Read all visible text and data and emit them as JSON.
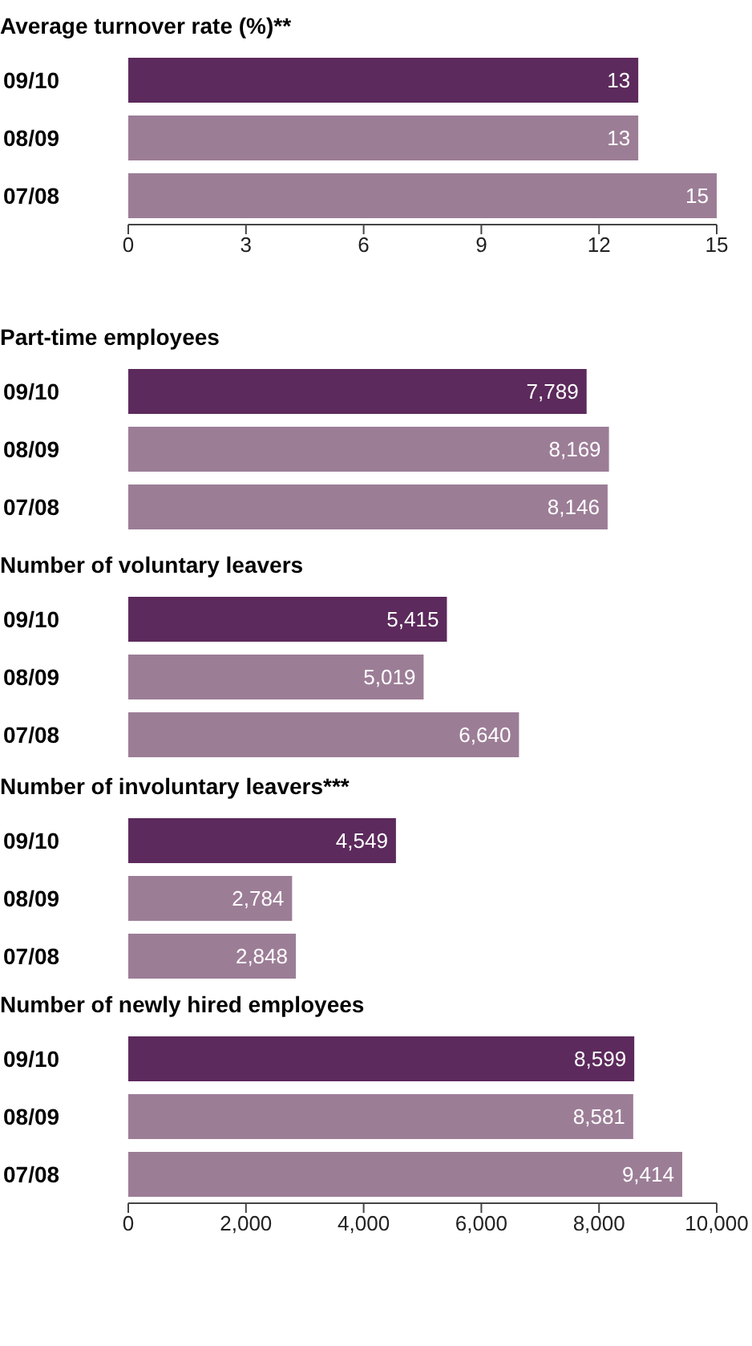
{
  "chart_data": [
    {
      "type": "bar",
      "orientation": "horizontal",
      "title": "Average turnover rate (%)**",
      "categories": [
        "09/10",
        "08/09",
        "07/08"
      ],
      "values": [
        13,
        13,
        15
      ],
      "colors": [
        "#5c2a5c",
        "#9c7d96",
        "#9c7d96"
      ],
      "xlim": [
        0,
        15
      ],
      "xticks": [
        0,
        3,
        6,
        9,
        12,
        15
      ],
      "data_labels": true,
      "grid": false,
      "legend": false
    },
    {
      "type": "bar",
      "orientation": "horizontal",
      "title": "Part-time employees",
      "categories": [
        "09/10",
        "08/09",
        "07/08"
      ],
      "values": [
        7789,
        8169,
        8146
      ],
      "value_labels": [
        "7,789",
        "8,169",
        "8,146"
      ],
      "colors": [
        "#5c2a5c",
        "#9c7d96",
        "#9c7d96"
      ],
      "xlim": [
        0,
        10000
      ],
      "tick_labels": "y",
      "grid": false,
      "legend": false
    },
    {
      "type": "bar",
      "orientation": "horizontal",
      "title": "Number of voluntary leavers",
      "categories": [
        "09/10",
        "08/09",
        "07/08"
      ],
      "values": [
        5415,
        5019,
        6640
      ],
      "value_labels": [
        "5,415",
        "5,019",
        "6,640"
      ],
      "colors": [
        "#5c2a5c",
        "#9c7d96",
        "#9c7d96"
      ],
      "xlim": [
        0,
        10000
      ],
      "tick_labels": "y",
      "grid": false,
      "legend": false
    },
    {
      "type": "bar",
      "orientation": "horizontal",
      "title": "Number of involuntary leavers***",
      "categories": [
        "09/10",
        "08/09",
        "07/08"
      ],
      "values": [
        4549,
        2784,
        2848
      ],
      "value_labels": [
        "4,549",
        "2,784",
        "2,848"
      ],
      "colors": [
        "#5c2a5c",
        "#9c7d96",
        "#9c7d96"
      ],
      "xlim": [
        0,
        10000
      ],
      "tick_labels": "y",
      "grid": false,
      "legend": false
    },
    {
      "type": "bar",
      "orientation": "horizontal",
      "title": "Number of newly hired employees",
      "categories": [
        "09/10",
        "08/09",
        "07/08"
      ],
      "values": [
        8599,
        8581,
        9414
      ],
      "value_labels": [
        "8,599",
        "8,581",
        "9,414"
      ],
      "colors": [
        "#5c2a5c",
        "#9c7d96",
        "#9c7d96"
      ],
      "xlim": [
        0,
        10000
      ],
      "xticks": [
        0,
        {
          "value": 2000,
          "label": "2,000"
        },
        {
          "value": 4000,
          "label": "4,000"
        },
        {
          "value": 6000,
          "label": "6,000"
        },
        {
          "value": 8000,
          "label": "8,000"
        },
        {
          "value": 10000,
          "label": "10,000"
        }
      ],
      "tick_labels": "xy",
      "grid": false,
      "legend": false
    }
  ]
}
